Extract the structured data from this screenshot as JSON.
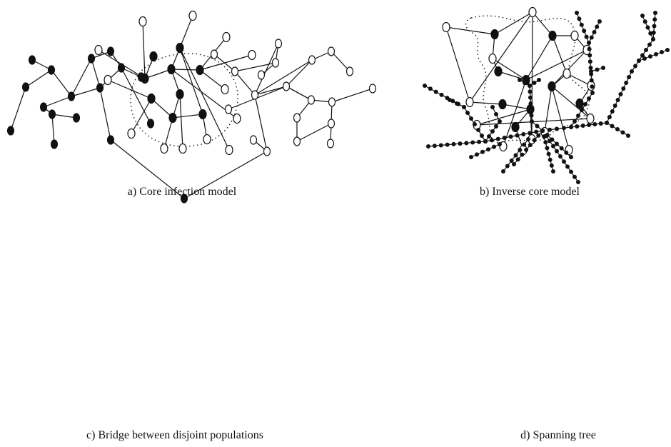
{
  "panels": [
    {
      "caption": "a) Core infection model"
    },
    {
      "caption": "b) Inverse core model"
    },
    {
      "caption": "c) Bridge between disjoint populations"
    },
    {
      "caption": "d) Spanning tree"
    }
  ]
}
